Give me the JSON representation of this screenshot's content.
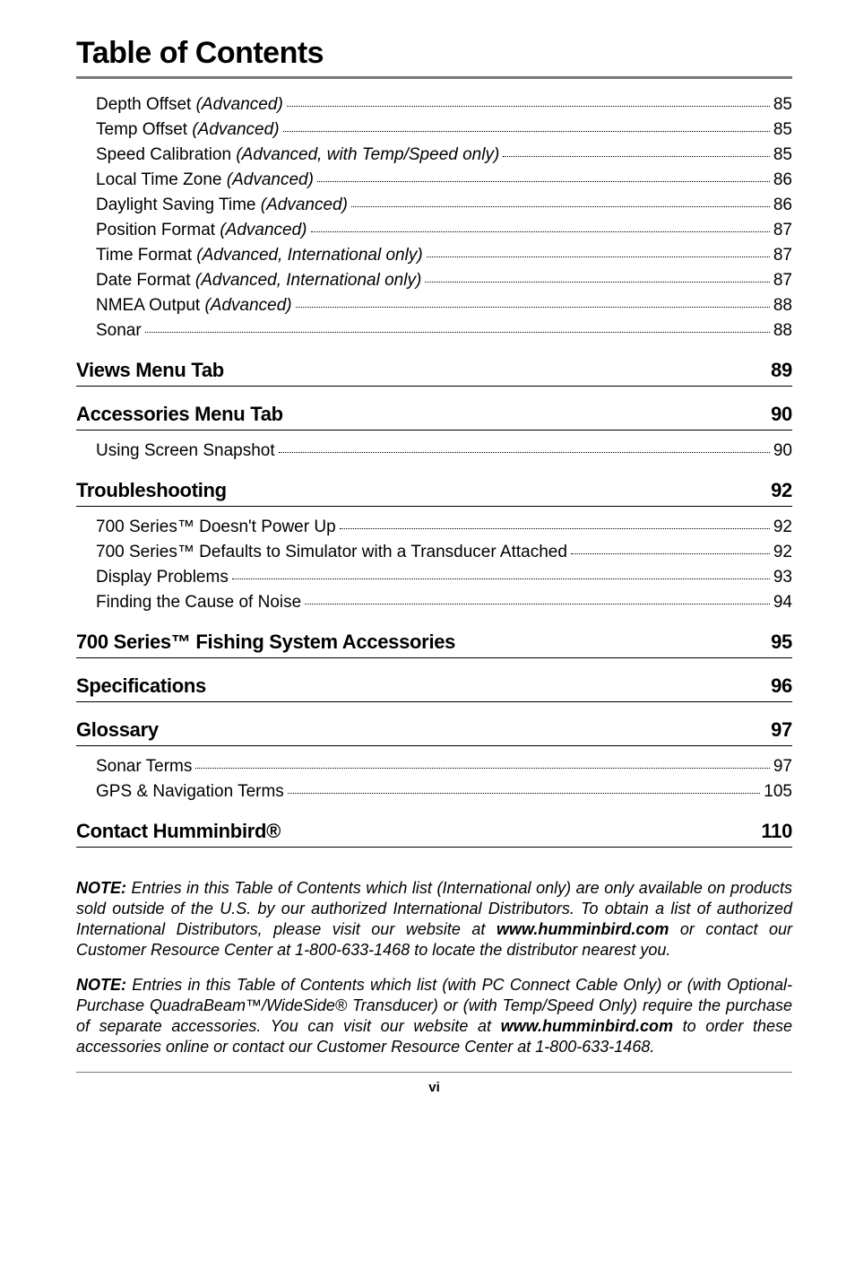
{
  "title": "Table of Contents",
  "top_entries": [
    {
      "label": "Depth Offset ",
      "ital": "(Advanced)",
      "tail": " ",
      "page": "85"
    },
    {
      "label": "Temp Offset ",
      "ital": "(Advanced)",
      "tail": "",
      "page": "85"
    },
    {
      "label": "Speed Calibration ",
      "ital": "(Advanced, with Temp/Speed only)",
      "tail": " ",
      "page": "85"
    },
    {
      "label": "Local Time Zone ",
      "ital": "(Advanced)",
      "tail": " ",
      "page": "86"
    },
    {
      "label": "Daylight Saving Time ",
      "ital": "(Advanced)",
      "tail": " ",
      "page": "86"
    },
    {
      "label": "Position Format ",
      "ital": "(Advanced)",
      "tail": "  ",
      "page": "87"
    },
    {
      "label": "Time Format ",
      "ital": "(Advanced, International only)",
      "tail": " ",
      "page": "87"
    },
    {
      "label": "Date Format ",
      "ital": "(Advanced, International only)",
      "tail": " ",
      "page": "87"
    },
    {
      "label": "NMEA Output ",
      "ital": "(Advanced)",
      "tail": " ",
      "page": "88"
    },
    {
      "label": "Sonar ",
      "ital": "",
      "tail": "",
      "page": "88"
    }
  ],
  "sections": [
    {
      "heading": "Views Menu Tab",
      "page": "89",
      "entries": []
    },
    {
      "heading": "Accessories Menu Tab",
      "page": "90",
      "entries": [
        {
          "label": "Using Screen Snapshot",
          "ital": "",
          "tail": "",
          "page": "90"
        }
      ]
    },
    {
      "heading": "Troubleshooting",
      "page": "92",
      "entries": [
        {
          "label": "700 Series™ Doesn't Power Up ",
          "ital": "",
          "tail": "",
          "page": "92"
        },
        {
          "label": "700 Series™ Defaults to Simulator with a Transducer Attached",
          "ital": "",
          "tail": "",
          "page": "92"
        },
        {
          "label": "Display Problems",
          "ital": "",
          "tail": "",
          "page": "93"
        },
        {
          "label": "Finding the Cause of Noise ",
          "ital": "",
          "tail": "",
          "page": "94"
        }
      ]
    },
    {
      "heading": "700 Series™ Fishing System Accessories",
      "page": "95",
      "entries": []
    },
    {
      "heading": "Specifications",
      "page": "96",
      "entries": []
    },
    {
      "heading": "Glossary",
      "page": "97",
      "entries": [
        {
          "label": "Sonar Terms ",
          "ital": "",
          "tail": "",
          "page": "97"
        },
        {
          "label": "GPS & Navigation Terms ",
          "ital": "",
          "tail": "",
          "page": "105"
        }
      ]
    },
    {
      "heading": "Contact Humminbird®",
      "page": "110",
      "entries": []
    }
  ],
  "notes": {
    "p1": {
      "lead": "NOTE:",
      "body": " Entries in this Table of Contents which list (International only) are only available on products sold outside of the U.S. by our authorized International Distributors.  To obtain a list of authorized International Distributors, please visit our website at ",
      "bold1": "www.humminbird.com",
      "after1": " or contact our Customer Resource Center at 1-800-633-1468 to locate the distributor nearest you."
    },
    "p2": {
      "lead": "NOTE:",
      "body": " Entries in this Table of Contents which list (with PC Connect Cable Only) or (with Optional-Purchase QuadraBeam™/WideSide® Transducer) or (with Temp/Speed Only) require the purchase of separate accessories.  You can visit our website at ",
      "bold1": "www.humminbird.com",
      "after1": " to order these accessories online or contact our Customer Resource Center at 1-800-633-1468."
    }
  },
  "page_number": "vi"
}
